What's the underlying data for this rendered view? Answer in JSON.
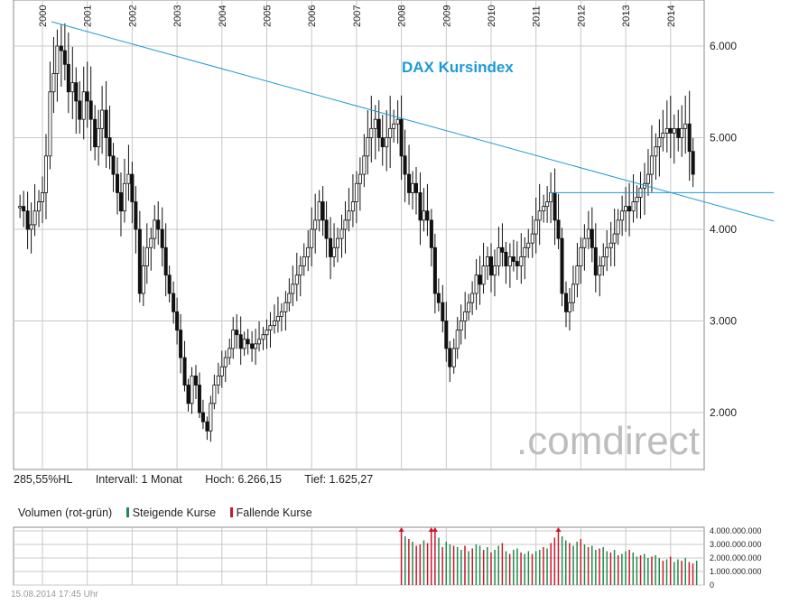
{
  "chart_data": [
    {
      "type": "candlestick",
      "title": "DAX Kursindex",
      "x_ticks": [
        "2000",
        "2001",
        "2002",
        "2003",
        "2004",
        "2005",
        "2006",
        "2007",
        "2008",
        "2009",
        "2010",
        "2011",
        "2012",
        "2013",
        "2014"
      ],
      "y_ticks": [
        "6.000",
        "5.000",
        "4.000",
        "3.000",
        "2.000"
      ],
      "ylim": [
        1400,
        6600
      ],
      "x_start": 1999.5,
      "grid": true,
      "colors": {
        "trendline": "#1c9ad6",
        "candle": "#111111",
        "grid": "#c8c8c8",
        "title": "#1c9ad6",
        "watermark": "#bdbdbd"
      },
      "watermark": ".comdirect",
      "trendlines": [
        {
          "from": [
            2000.2,
            6266
          ],
          "to": [
            2016.3,
            4090
          ]
        },
        {
          "from": [
            2011.3,
            4400
          ],
          "to": [
            2016.3,
            4400
          ]
        }
      ],
      "monthly_close": [
        [
          1999.5,
          4250
        ],
        [
          1999.58,
          4200
        ],
        [
          1999.67,
          4000
        ],
        [
          1999.75,
          4050
        ],
        [
          1999.83,
          4200
        ],
        [
          1999.92,
          4300
        ],
        [
          2000.0,
          4400
        ],
        [
          2000.08,
          4800
        ],
        [
          2000.17,
          5500
        ],
        [
          2000.25,
          5700
        ],
        [
          2000.33,
          6000
        ],
        [
          2000.42,
          5950
        ],
        [
          2000.5,
          5800
        ],
        [
          2000.58,
          5500
        ],
        [
          2000.67,
          5600
        ],
        [
          2000.75,
          5400
        ],
        [
          2000.83,
          5200
        ],
        [
          2000.92,
          5500
        ],
        [
          2001.0,
          5400
        ],
        [
          2001.08,
          5200
        ],
        [
          2001.17,
          4900
        ],
        [
          2001.25,
          5100
        ],
        [
          2001.33,
          5300
        ],
        [
          2001.42,
          5000
        ],
        [
          2001.5,
          4800
        ],
        [
          2001.58,
          4600
        ],
        [
          2001.67,
          4400
        ],
        [
          2001.75,
          4200
        ],
        [
          2001.83,
          4500
        ],
        [
          2001.92,
          4600
        ],
        [
          2002.0,
          4300
        ],
        [
          2002.08,
          4000
        ],
        [
          2002.17,
          3300
        ],
        [
          2002.25,
          3600
        ],
        [
          2002.33,
          3800
        ],
        [
          2002.42,
          3900
        ],
        [
          2002.5,
          4100
        ],
        [
          2002.58,
          4000
        ],
        [
          2002.67,
          3800
        ],
        [
          2002.75,
          3500
        ],
        [
          2002.83,
          3300
        ],
        [
          2002.92,
          3100
        ],
        [
          2003.0,
          2900
        ],
        [
          2003.08,
          2600
        ],
        [
          2003.17,
          2300
        ],
        [
          2003.25,
          2100
        ],
        [
          2003.33,
          2400
        ],
        [
          2003.42,
          2300
        ],
        [
          2003.5,
          2000
        ],
        [
          2003.58,
          1900
        ],
        [
          2003.67,
          1800
        ],
        [
          2003.75,
          2100
        ],
        [
          2003.83,
          2300
        ],
        [
          2003.92,
          2400
        ],
        [
          2004.0,
          2500
        ],
        [
          2004.08,
          2600
        ],
        [
          2004.17,
          2700
        ],
        [
          2004.25,
          2900
        ],
        [
          2004.33,
          2850
        ],
        [
          2004.42,
          2700
        ],
        [
          2004.5,
          2800
        ],
        [
          2004.58,
          2750
        ],
        [
          2004.67,
          2700
        ],
        [
          2004.75,
          2750
        ],
        [
          2004.83,
          2800
        ],
        [
          2004.92,
          2850
        ],
        [
          2005.0,
          2900
        ],
        [
          2005.08,
          2950
        ],
        [
          2005.17,
          3000
        ],
        [
          2005.25,
          3050
        ],
        [
          2005.33,
          3100
        ],
        [
          2005.42,
          3200
        ],
        [
          2005.5,
          3300
        ],
        [
          2005.58,
          3400
        ],
        [
          2005.67,
          3500
        ],
        [
          2005.75,
          3600
        ],
        [
          2005.83,
          3700
        ],
        [
          2005.92,
          3800
        ],
        [
          2006.0,
          4000
        ],
        [
          2006.08,
          4100
        ],
        [
          2006.17,
          4300
        ],
        [
          2006.25,
          4100
        ],
        [
          2006.33,
          3900
        ],
        [
          2006.42,
          3700
        ],
        [
          2006.5,
          3800
        ],
        [
          2006.58,
          3900
        ],
        [
          2006.67,
          4000
        ],
        [
          2006.75,
          4100
        ],
        [
          2006.83,
          4200
        ],
        [
          2006.92,
          4300
        ],
        [
          2007.0,
          4500
        ],
        [
          2007.08,
          4600
        ],
        [
          2007.17,
          4800
        ],
        [
          2007.25,
          5000
        ],
        [
          2007.33,
          5100
        ],
        [
          2007.42,
          5200
        ],
        [
          2007.5,
          5000
        ],
        [
          2007.58,
          4900
        ],
        [
          2007.67,
          5000
        ],
        [
          2007.75,
          5100
        ],
        [
          2007.83,
          5150
        ],
        [
          2007.92,
          5200
        ],
        [
          2008.0,
          4800
        ],
        [
          2008.08,
          4600
        ],
        [
          2008.17,
          4400
        ],
        [
          2008.25,
          4500
        ],
        [
          2008.33,
          4400
        ],
        [
          2008.42,
          4100
        ],
        [
          2008.5,
          4200
        ],
        [
          2008.58,
          4100
        ],
        [
          2008.67,
          3800
        ],
        [
          2008.75,
          3300
        ],
        [
          2008.83,
          3200
        ],
        [
          2008.92,
          3000
        ],
        [
          2009.0,
          2700
        ],
        [
          2009.08,
          2500
        ],
        [
          2009.17,
          2700
        ],
        [
          2009.25,
          2900
        ],
        [
          2009.33,
          3000
        ],
        [
          2009.42,
          3100
        ],
        [
          2009.5,
          3200
        ],
        [
          2009.58,
          3300
        ],
        [
          2009.67,
          3500
        ],
        [
          2009.75,
          3400
        ],
        [
          2009.83,
          3600
        ],
        [
          2009.92,
          3700
        ],
        [
          2010.0,
          3500
        ],
        [
          2010.08,
          3600
        ],
        [
          2010.17,
          3800
        ],
        [
          2010.25,
          3750
        ],
        [
          2010.33,
          3600
        ],
        [
          2010.42,
          3700
        ],
        [
          2010.5,
          3650
        ],
        [
          2010.58,
          3600
        ],
        [
          2010.67,
          3700
        ],
        [
          2010.75,
          3800
        ],
        [
          2010.83,
          3850
        ],
        [
          2010.92,
          3950
        ],
        [
          2011.0,
          4100
        ],
        [
          2011.08,
          4200
        ],
        [
          2011.17,
          4250
        ],
        [
          2011.25,
          4300
        ],
        [
          2011.33,
          4400
        ],
        [
          2011.42,
          4100
        ],
        [
          2011.5,
          3900
        ],
        [
          2011.58,
          3300
        ],
        [
          2011.67,
          3100
        ],
        [
          2011.75,
          3200
        ],
        [
          2011.83,
          3400
        ],
        [
          2011.92,
          3600
        ],
        [
          2012.0,
          3800
        ],
        [
          2012.08,
          3900
        ],
        [
          2012.17,
          4000
        ],
        [
          2012.25,
          3800
        ],
        [
          2012.33,
          3500
        ],
        [
          2012.42,
          3600
        ],
        [
          2012.5,
          3700
        ],
        [
          2012.58,
          3800
        ],
        [
          2012.67,
          3850
        ],
        [
          2012.75,
          3950
        ],
        [
          2012.83,
          4100
        ],
        [
          2012.92,
          4200
        ],
        [
          2013.0,
          4250
        ],
        [
          2013.08,
          4200
        ],
        [
          2013.17,
          4300
        ],
        [
          2013.25,
          4350
        ],
        [
          2013.33,
          4450
        ],
        [
          2013.42,
          4500
        ],
        [
          2013.5,
          4600
        ],
        [
          2013.58,
          4800
        ],
        [
          2013.67,
          4900
        ],
        [
          2013.75,
          5000
        ],
        [
          2013.83,
          5050
        ],
        [
          2013.92,
          5100
        ],
        [
          2014.0,
          5050
        ],
        [
          2014.08,
          5100
        ],
        [
          2014.17,
          5000
        ],
        [
          2014.25,
          5100
        ],
        [
          2014.33,
          5150
        ],
        [
          2014.42,
          4850
        ],
        [
          2014.5,
          4600
        ]
      ],
      "stats": {
        "ratio": "285,55%HL",
        "interval": "Intervall: 1 Monat",
        "high": "Hoch:  6.266,15",
        "low": "Tief:  1.625,27"
      }
    },
    {
      "type": "bar",
      "title": "Volumen (rot-grün)",
      "legend": [
        "Steigende Kurse",
        "Fallende Kurse"
      ],
      "legend_colors": [
        "#1f8a4c",
        "#d0142b"
      ],
      "y_ticks": [
        "4.000.000.000",
        "3.000.000.000",
        "2.000.000.000",
        "1.000.000.000",
        "0"
      ],
      "ylim": [
        0,
        4000000000
      ],
      "x_start": 2008.0,
      "x_step": 0.0833,
      "values": [
        4000000000.0,
        3600000000.0,
        3400000000.0,
        3200000000.0,
        2900000000.0,
        3000000000.0,
        3300000000.0,
        3100000000.0,
        4000000000.0,
        4000000000.0,
        3500000000.0,
        2800000000.0,
        3200000000.0,
        3000000000.0,
        2900000000.0,
        2800000000.0,
        2600000000.0,
        2900000000.0,
        2500000000.0,
        2700000000.0,
        3000000000.0,
        2900000000.0,
        2600000000.0,
        2800000000.0,
        2400000000.0,
        2600000000.0,
        2900000000.0,
        3100000000.0,
        2500000000.0,
        2300000000.0,
        2600000000.0,
        2700000000.0,
        2400000000.0,
        2300000000.0,
        2500000000.0,
        2300000000.0,
        2500000000.0,
        2600000000.0,
        2800000000.0,
        2700000000.0,
        3100000000.0,
        3500000000.0,
        4000000000.0,
        3600000000.0,
        3300000000.0,
        3100000000.0,
        2900000000.0,
        3200000000.0,
        3400000000.0,
        3000000000.0,
        2800000000.0,
        2900000000.0,
        2600000000.0,
        2700000000.0,
        2800000000.0,
        2500000000.0,
        2400000000.0,
        2600000000.0,
        2200000000.0,
        2300000000.0,
        2500000000.0,
        2600000000.0,
        2400000000.0,
        2100000000.0,
        2200000000.0,
        2300000000.0,
        2000000000.0,
        2100000000.0,
        2200000000.0,
        2000000000.0,
        1800000000.0,
        1900000000.0,
        2100000000.0,
        1700000000.0,
        1900000000.0,
        1800000000.0,
        2000000000.0,
        1700000000.0,
        1600000000.0,
        1800000000.0
      ],
      "rising": [
        0,
        1,
        0,
        1,
        0,
        0,
        1,
        0,
        0,
        0,
        1,
        0,
        1,
        1,
        0,
        1,
        1,
        0,
        1,
        0,
        1,
        1,
        0,
        1,
        0,
        1,
        1,
        0,
        1,
        0,
        1,
        1,
        0,
        1,
        1,
        0,
        1,
        1,
        0,
        1,
        0,
        0,
        0,
        1,
        1,
        0,
        1,
        1,
        0,
        1,
        0,
        1,
        1,
        0,
        1,
        1,
        0,
        1,
        0,
        1,
        1,
        0,
        1,
        1,
        0,
        1,
        1,
        0,
        1,
        1,
        0,
        1,
        0,
        1,
        1,
        0,
        1,
        0,
        0,
        1
      ]
    }
  ],
  "footer": "15.08.2014 17:45 Uhr"
}
